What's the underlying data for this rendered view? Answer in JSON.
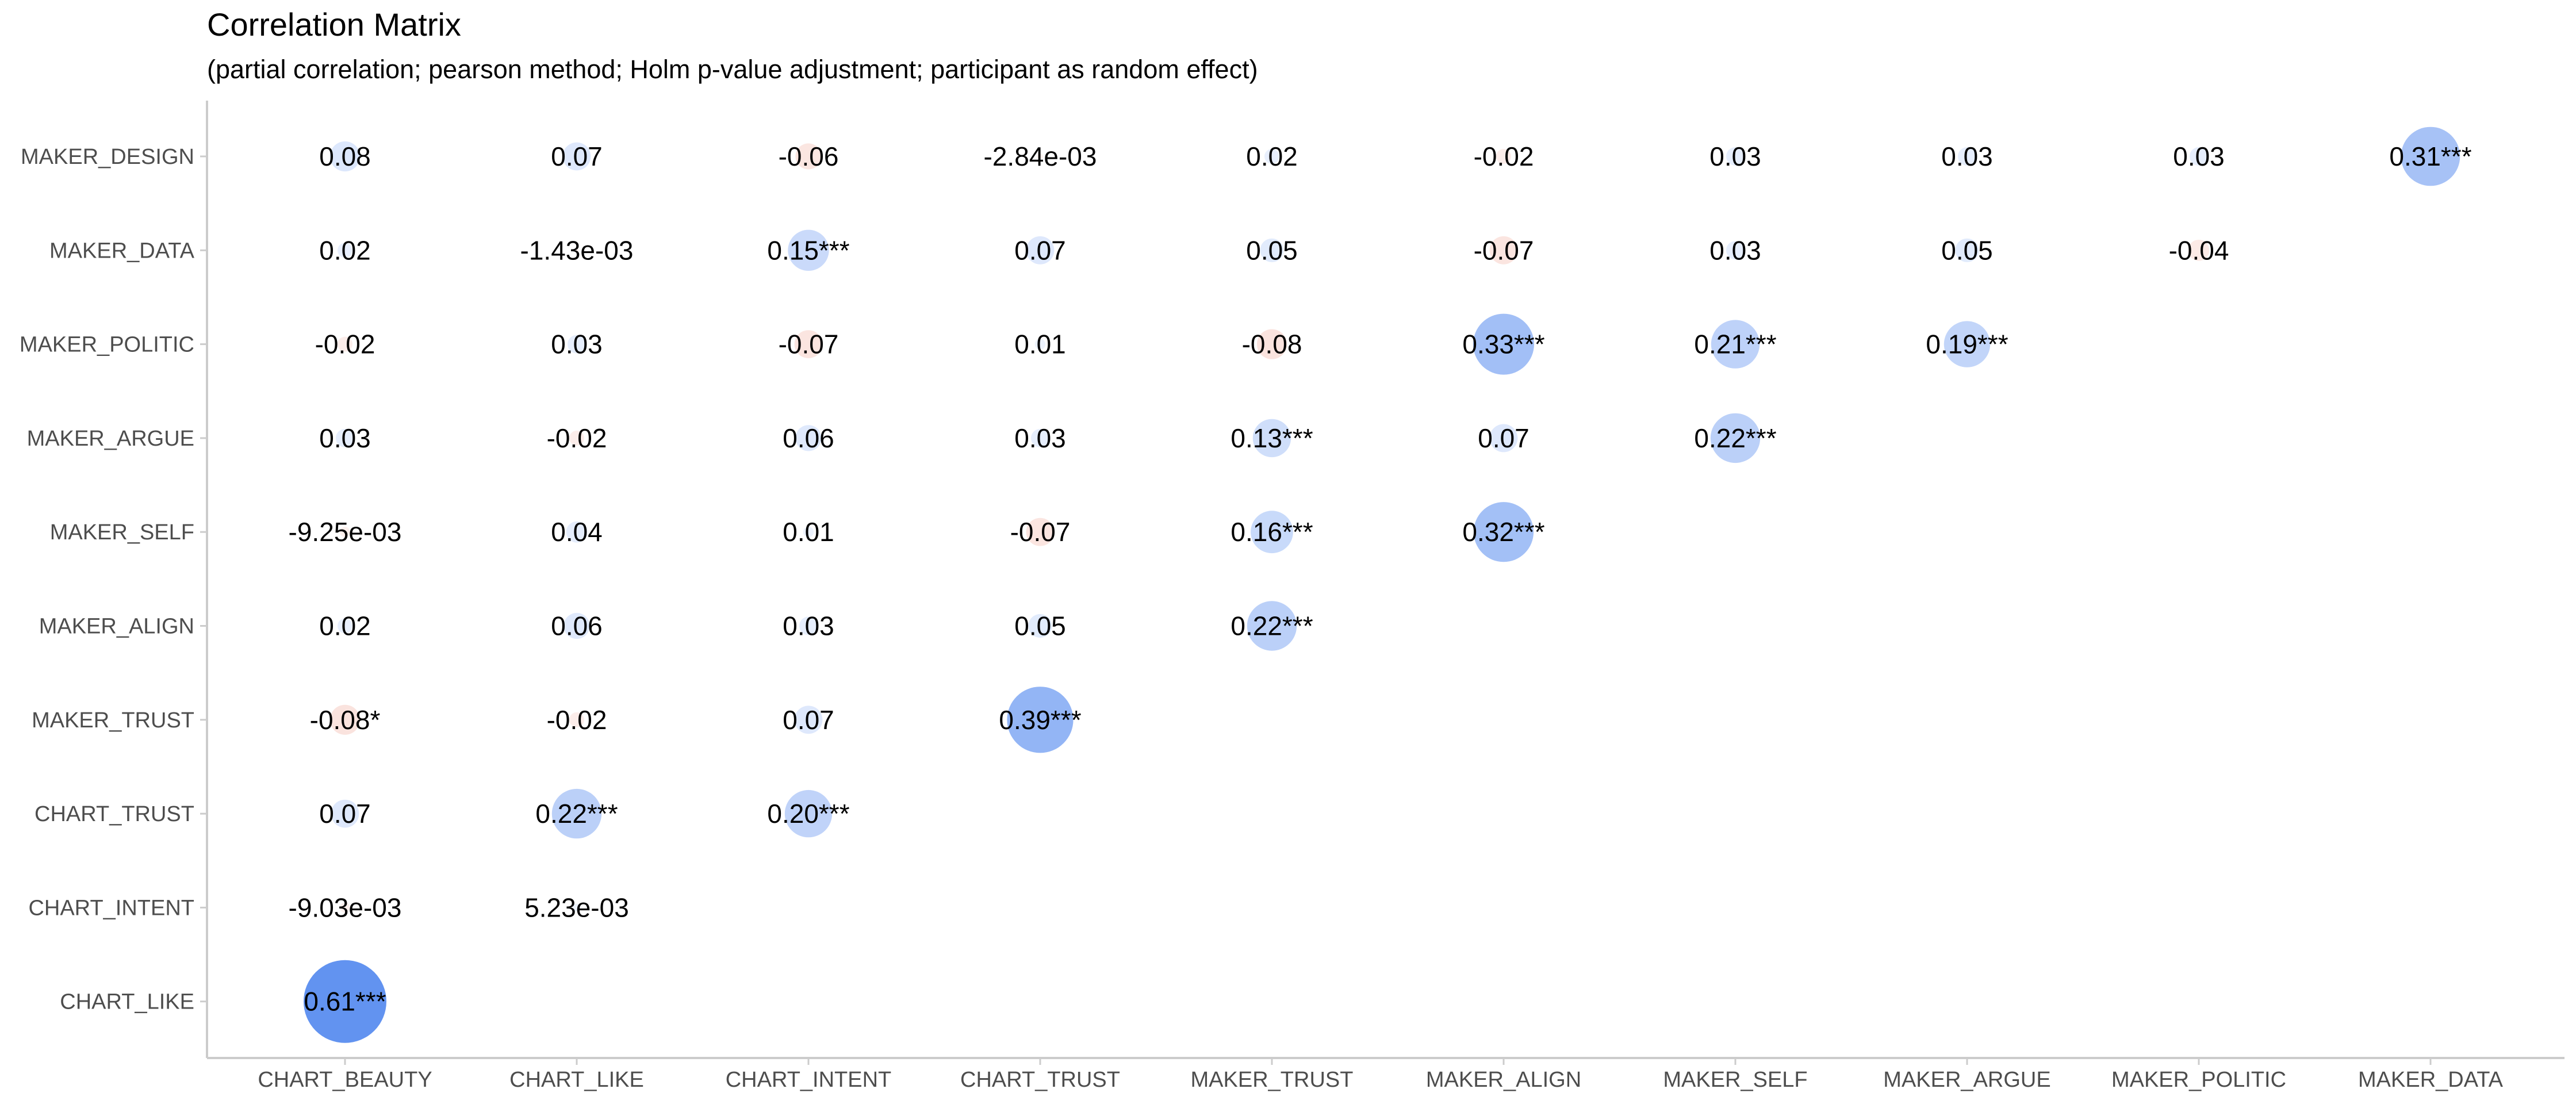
{
  "chart_data": {
    "type": "heatmap",
    "title": "Correlation Matrix",
    "subtitle": "(partial correlation; pearson method; Holm p-value adjustment; participant as random effect)",
    "x_categories": [
      "CHART_BEAUTY",
      "CHART_LIKE",
      "CHART_INTENT",
      "CHART_TRUST",
      "MAKER_TRUST",
      "MAKER_ALIGN",
      "MAKER_SELF",
      "MAKER_ARGUE",
      "MAKER_POLITIC",
      "MAKER_DATA"
    ],
    "y_categories": [
      "MAKER_DESIGN",
      "MAKER_DATA",
      "MAKER_POLITIC",
      "MAKER_ARGUE",
      "MAKER_SELF",
      "MAKER_ALIGN",
      "MAKER_TRUST",
      "CHART_TRUST",
      "CHART_INTENT",
      "CHART_LIKE"
    ],
    "colors": {
      "positive": "#4f86ee",
      "negative": "#e8735a"
    },
    "cells": [
      {
        "x": "CHART_BEAUTY",
        "y": "MAKER_DESIGN",
        "value": 0.08,
        "label": "0.08"
      },
      {
        "x": "CHART_LIKE",
        "y": "MAKER_DESIGN",
        "value": 0.07,
        "label": "0.07"
      },
      {
        "x": "CHART_INTENT",
        "y": "MAKER_DESIGN",
        "value": -0.06,
        "label": "-0.06"
      },
      {
        "x": "CHART_TRUST",
        "y": "MAKER_DESIGN",
        "value": -0.00284,
        "label": "-2.84e-03"
      },
      {
        "x": "MAKER_TRUST",
        "y": "MAKER_DESIGN",
        "value": 0.02,
        "label": "0.02"
      },
      {
        "x": "MAKER_ALIGN",
        "y": "MAKER_DESIGN",
        "value": -0.02,
        "label": "-0.02"
      },
      {
        "x": "MAKER_SELF",
        "y": "MAKER_DESIGN",
        "value": 0.03,
        "label": "0.03"
      },
      {
        "x": "MAKER_ARGUE",
        "y": "MAKER_DESIGN",
        "value": 0.03,
        "label": "0.03"
      },
      {
        "x": "MAKER_POLITIC",
        "y": "MAKER_DESIGN",
        "value": 0.03,
        "label": "0.03"
      },
      {
        "x": "MAKER_DATA",
        "y": "MAKER_DESIGN",
        "value": 0.31,
        "label": "0.31***"
      },
      {
        "x": "CHART_BEAUTY",
        "y": "MAKER_DATA",
        "value": 0.02,
        "label": "0.02"
      },
      {
        "x": "CHART_LIKE",
        "y": "MAKER_DATA",
        "value": -0.00143,
        "label": "-1.43e-03"
      },
      {
        "x": "CHART_INTENT",
        "y": "MAKER_DATA",
        "value": 0.15,
        "label": "0.15***"
      },
      {
        "x": "CHART_TRUST",
        "y": "MAKER_DATA",
        "value": 0.07,
        "label": "0.07"
      },
      {
        "x": "MAKER_TRUST",
        "y": "MAKER_DATA",
        "value": 0.05,
        "label": "0.05"
      },
      {
        "x": "MAKER_ALIGN",
        "y": "MAKER_DATA",
        "value": -0.07,
        "label": "-0.07"
      },
      {
        "x": "MAKER_SELF",
        "y": "MAKER_DATA",
        "value": 0.03,
        "label": "0.03"
      },
      {
        "x": "MAKER_ARGUE",
        "y": "MAKER_DATA",
        "value": 0.05,
        "label": "0.05"
      },
      {
        "x": "MAKER_POLITIC",
        "y": "MAKER_DATA",
        "value": -0.04,
        "label": "-0.04"
      },
      {
        "x": "CHART_BEAUTY",
        "y": "MAKER_POLITIC",
        "value": -0.02,
        "label": "-0.02"
      },
      {
        "x": "CHART_LIKE",
        "y": "MAKER_POLITIC",
        "value": 0.03,
        "label": "0.03"
      },
      {
        "x": "CHART_INTENT",
        "y": "MAKER_POLITIC",
        "value": -0.07,
        "label": "-0.07"
      },
      {
        "x": "CHART_TRUST",
        "y": "MAKER_POLITIC",
        "value": 0.01,
        "label": "0.01"
      },
      {
        "x": "MAKER_TRUST",
        "y": "MAKER_POLITIC",
        "value": -0.08,
        "label": "-0.08"
      },
      {
        "x": "MAKER_ALIGN",
        "y": "MAKER_POLITIC",
        "value": 0.33,
        "label": "0.33***"
      },
      {
        "x": "MAKER_SELF",
        "y": "MAKER_POLITIC",
        "value": 0.21,
        "label": "0.21***"
      },
      {
        "x": "MAKER_ARGUE",
        "y": "MAKER_POLITIC",
        "value": 0.19,
        "label": "0.19***"
      },
      {
        "x": "CHART_BEAUTY",
        "y": "MAKER_ARGUE",
        "value": 0.03,
        "label": "0.03"
      },
      {
        "x": "CHART_LIKE",
        "y": "MAKER_ARGUE",
        "value": -0.02,
        "label": "-0.02"
      },
      {
        "x": "CHART_INTENT",
        "y": "MAKER_ARGUE",
        "value": 0.06,
        "label": "0.06"
      },
      {
        "x": "CHART_TRUST",
        "y": "MAKER_ARGUE",
        "value": 0.03,
        "label": "0.03"
      },
      {
        "x": "MAKER_TRUST",
        "y": "MAKER_ARGUE",
        "value": 0.13,
        "label": "0.13***"
      },
      {
        "x": "MAKER_ALIGN",
        "y": "MAKER_ARGUE",
        "value": 0.07,
        "label": "0.07"
      },
      {
        "x": "MAKER_SELF",
        "y": "MAKER_ARGUE",
        "value": 0.22,
        "label": "0.22***"
      },
      {
        "x": "CHART_BEAUTY",
        "y": "MAKER_SELF",
        "value": -0.00925,
        "label": "-9.25e-03"
      },
      {
        "x": "CHART_LIKE",
        "y": "MAKER_SELF",
        "value": 0.04,
        "label": "0.04"
      },
      {
        "x": "CHART_INTENT",
        "y": "MAKER_SELF",
        "value": 0.01,
        "label": "0.01"
      },
      {
        "x": "CHART_TRUST",
        "y": "MAKER_SELF",
        "value": -0.07,
        "label": "-0.07"
      },
      {
        "x": "MAKER_TRUST",
        "y": "MAKER_SELF",
        "value": 0.16,
        "label": "0.16***"
      },
      {
        "x": "MAKER_ALIGN",
        "y": "MAKER_SELF",
        "value": 0.32,
        "label": "0.32***"
      },
      {
        "x": "CHART_BEAUTY",
        "y": "MAKER_ALIGN",
        "value": 0.02,
        "label": "0.02"
      },
      {
        "x": "CHART_LIKE",
        "y": "MAKER_ALIGN",
        "value": 0.06,
        "label": "0.06"
      },
      {
        "x": "CHART_INTENT",
        "y": "MAKER_ALIGN",
        "value": 0.03,
        "label": "0.03"
      },
      {
        "x": "CHART_TRUST",
        "y": "MAKER_ALIGN",
        "value": 0.05,
        "label": "0.05"
      },
      {
        "x": "MAKER_TRUST",
        "y": "MAKER_ALIGN",
        "value": 0.22,
        "label": "0.22***"
      },
      {
        "x": "CHART_BEAUTY",
        "y": "MAKER_TRUST",
        "value": -0.08,
        "label": "-0.08*"
      },
      {
        "x": "CHART_LIKE",
        "y": "MAKER_TRUST",
        "value": -0.02,
        "label": "-0.02"
      },
      {
        "x": "CHART_INTENT",
        "y": "MAKER_TRUST",
        "value": 0.07,
        "label": "0.07"
      },
      {
        "x": "CHART_TRUST",
        "y": "MAKER_TRUST",
        "value": 0.39,
        "label": "0.39***"
      },
      {
        "x": "CHART_BEAUTY",
        "y": "CHART_TRUST",
        "value": 0.07,
        "label": "0.07"
      },
      {
        "x": "CHART_LIKE",
        "y": "CHART_TRUST",
        "value": 0.22,
        "label": "0.22***"
      },
      {
        "x": "CHART_INTENT",
        "y": "CHART_TRUST",
        "value": 0.2,
        "label": "0.20***"
      },
      {
        "x": "CHART_BEAUTY",
        "y": "CHART_INTENT",
        "value": -0.00903,
        "label": "-9.03e-03"
      },
      {
        "x": "CHART_LIKE",
        "y": "CHART_INTENT",
        "value": 0.00523,
        "label": "5.23e-03"
      },
      {
        "x": "CHART_BEAUTY",
        "y": "CHART_LIKE",
        "value": 0.61,
        "label": "0.61***"
      }
    ]
  }
}
